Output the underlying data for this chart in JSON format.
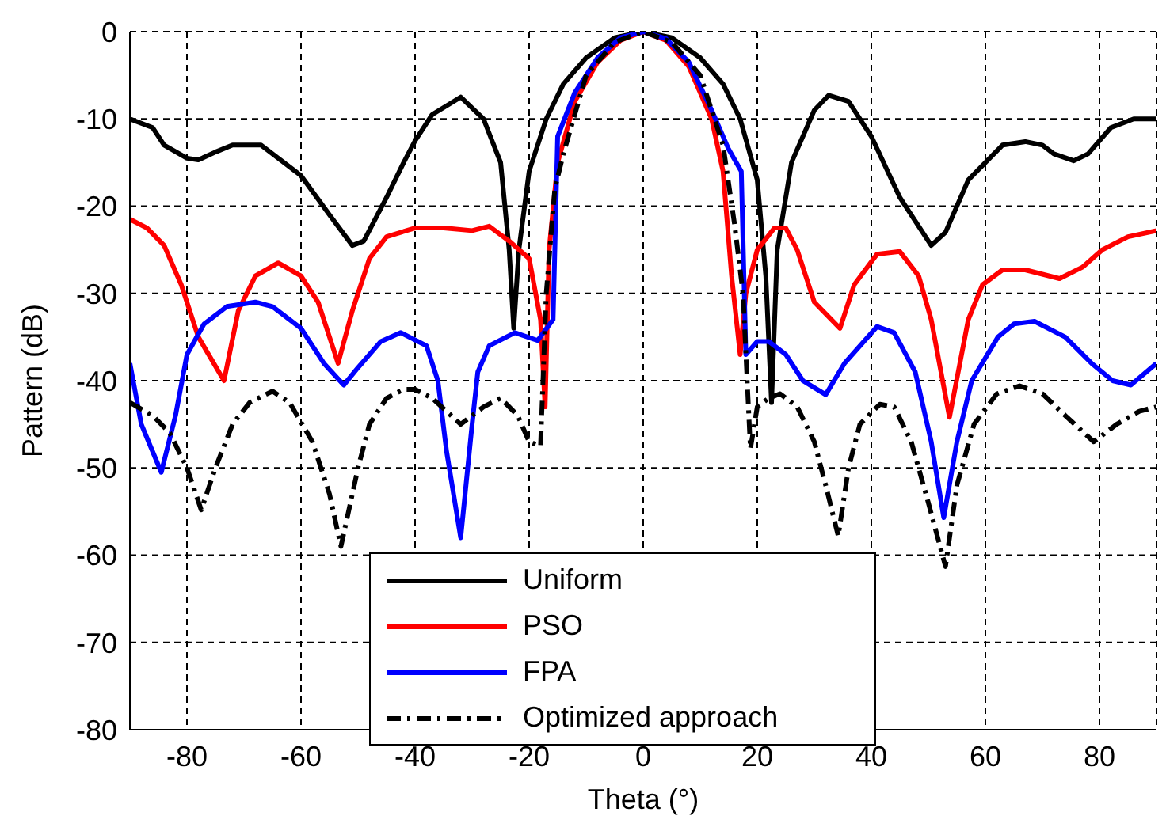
{
  "chart_data": {
    "type": "line",
    "xlabel": "Theta (°)",
    "ylabel": "Pattern (dB)",
    "xlim": [
      -90,
      90
    ],
    "xticks": [
      -80,
      -60,
      -40,
      -20,
      0,
      20,
      40,
      60,
      80
    ],
    "ylim": [
      -80,
      0
    ],
    "yticks": [
      -80,
      -70,
      -60,
      -50,
      -40,
      -30,
      -20,
      -10,
      0
    ],
    "grid": true,
    "legend": "bottom",
    "marker": "none",
    "series": [
      {
        "name": "Uniform",
        "color": "#000000",
        "line_style": "solid",
        "x": [
          -90,
          -86,
          -84,
          -80,
          -78,
          -75,
          -72,
          -67,
          -63,
          -60,
          -55,
          -51,
          -49,
          -45,
          -42,
          -40,
          -37,
          -32,
          -28,
          -25,
          -23.5,
          -22.7,
          -21.8,
          -20,
          -17,
          -14,
          -10,
          -5,
          0,
          5,
          10,
          14,
          17,
          20,
          21.5,
          22.5,
          23.5,
          26,
          30,
          32.5,
          36,
          40,
          45,
          50.5,
          53,
          57,
          60,
          63,
          67,
          70,
          72,
          75.5,
          78,
          82,
          86,
          90
        ],
        "values": [
          -10,
          -11,
          -13,
          -14.5,
          -14.7,
          -13.8,
          -13,
          -13,
          -15,
          -16.5,
          -21,
          -24.5,
          -24,
          -19,
          -15,
          -12.5,
          -9.5,
          -7.5,
          -10,
          -15,
          -25,
          -34,
          -25,
          -16,
          -10,
          -6,
          -3,
          -0.7,
          0,
          -0.7,
          -3,
          -6,
          -10,
          -17,
          -28,
          -42.5,
          -25,
          -15,
          -9,
          -7.3,
          -8,
          -12,
          -19,
          -24.5,
          -23,
          -17,
          -15,
          -13,
          -12.6,
          -13,
          -14,
          -14.8,
          -14,
          -11,
          -10,
          -10
        ]
      },
      {
        "name": "PSO",
        "color": "#ff0000",
        "line_style": "solid",
        "x": [
          -90,
          -87,
          -84,
          -81,
          -78,
          -73.5,
          -71,
          -68,
          -64,
          -60,
          -57,
          -55,
          -53.5,
          -51,
          -48,
          -45,
          -40,
          -35,
          -30,
          -27,
          -23.5,
          -20,
          -18,
          -17.2,
          -16.5,
          -15,
          -12,
          -8,
          -4,
          0,
          4,
          8,
          12,
          14,
          15.5,
          17,
          18,
          20,
          23,
          25,
          27,
          30,
          34.5,
          37,
          41,
          45,
          48.3,
          50.5,
          53.7,
          57,
          59.5,
          63,
          67,
          73,
          77,
          80.5,
          85,
          90
        ],
        "values": [
          -21.5,
          -22.5,
          -24.5,
          -29,
          -35,
          -40,
          -32,
          -28,
          -26.5,
          -28,
          -31,
          -35,
          -38,
          -32,
          -26,
          -23.5,
          -22.5,
          -22.5,
          -22.8,
          -22.3,
          -24,
          -26,
          -33,
          -43,
          -25,
          -15,
          -8,
          -3.5,
          -1,
          0,
          -1,
          -4,
          -10,
          -16,
          -28,
          -37,
          -30,
          -25,
          -22.5,
          -22.5,
          -25,
          -31,
          -34,
          -29,
          -25.5,
          -25.2,
          -28,
          -33,
          -44.2,
          -33,
          -29,
          -27.3,
          -27.3,
          -28.3,
          -27,
          -25,
          -23.5,
          -22.8
        ]
      },
      {
        "name": "FPA",
        "color": "#0000ff",
        "line_style": "solid",
        "x": [
          -90,
          -88,
          -84.5,
          -82,
          -80,
          -77,
          -73,
          -68,
          -65,
          -60,
          -56,
          -52.5,
          -50,
          -46,
          -42.5,
          -38,
          -36,
          -34.5,
          -32,
          -30,
          -29,
          -27,
          -24,
          -22.5,
          -18.5,
          -15.8,
          -15,
          -12,
          -8,
          -4,
          0,
          4,
          8,
          12,
          15,
          17.2,
          18,
          20,
          22,
          25,
          28,
          32,
          35.3,
          41,
          44,
          47.7,
          50.5,
          52.7,
          55,
          57.6,
          62.2,
          65,
          68.6,
          74,
          78.6,
          82.3,
          85.5,
          90
        ],
        "values": [
          -38,
          -45,
          -50.5,
          -44,
          -37,
          -33.5,
          -31.5,
          -31,
          -31.5,
          -34,
          -38,
          -40.5,
          -38.5,
          -35.5,
          -34.5,
          -36,
          -40,
          -48,
          -58,
          -45,
          -39,
          -36,
          -35,
          -34.5,
          -35.4,
          -33,
          -12,
          -7,
          -3,
          -0.7,
          0,
          -0.8,
          -3.5,
          -9,
          -13.5,
          -16,
          -37,
          -35.5,
          -35.5,
          -37,
          -40,
          -41.6,
          -38,
          -33.8,
          -34.5,
          -39,
          -47,
          -55.7,
          -47,
          -40,
          -35,
          -33.5,
          -33.2,
          -35,
          -38,
          -40,
          -40.5,
          -38
        ]
      },
      {
        "name": "Optimized approach",
        "color": "#000000",
        "line_style": "dashed",
        "x": [
          -90,
          -86,
          -83,
          -80,
          -77.5,
          -75,
          -72,
          -69,
          -65,
          -62,
          -58,
          -55,
          -53,
          -50,
          -48,
          -45,
          -42,
          -40,
          -37,
          -32,
          -28,
          -25,
          -22,
          -20,
          -18,
          -17,
          -15.5,
          -14,
          -10,
          -5,
          0,
          5,
          10,
          14,
          16,
          17.5,
          18.8,
          20,
          22,
          24,
          27,
          30,
          32,
          34.2,
          36,
          38,
          41.5,
          44,
          47,
          50,
          53,
          55,
          58,
          62,
          66,
          70,
          74,
          79,
          83,
          87,
          90
        ],
        "values": [
          -42.5,
          -44,
          -46,
          -50,
          -54.8,
          -50,
          -45,
          -42.5,
          -41.2,
          -42.5,
          -47,
          -53,
          -59,
          -50,
          -45,
          -42,
          -41,
          -41,
          -42,
          -45,
          -43,
          -42,
          -44,
          -47,
          -47.5,
          -30,
          -18,
          -14,
          -5,
          -1.2,
          0,
          -1.2,
          -5,
          -13,
          -22,
          -30,
          -47.8,
          -43,
          -42,
          -41.5,
          -43,
          -47,
          -52,
          -57.8,
          -50,
          -45,
          -42.7,
          -43,
          -47,
          -54,
          -61.3,
          -52,
          -45,
          -41.5,
          -40.6,
          -41.5,
          -44,
          -47,
          -45,
          -43.5,
          -43
        ]
      }
    ]
  }
}
